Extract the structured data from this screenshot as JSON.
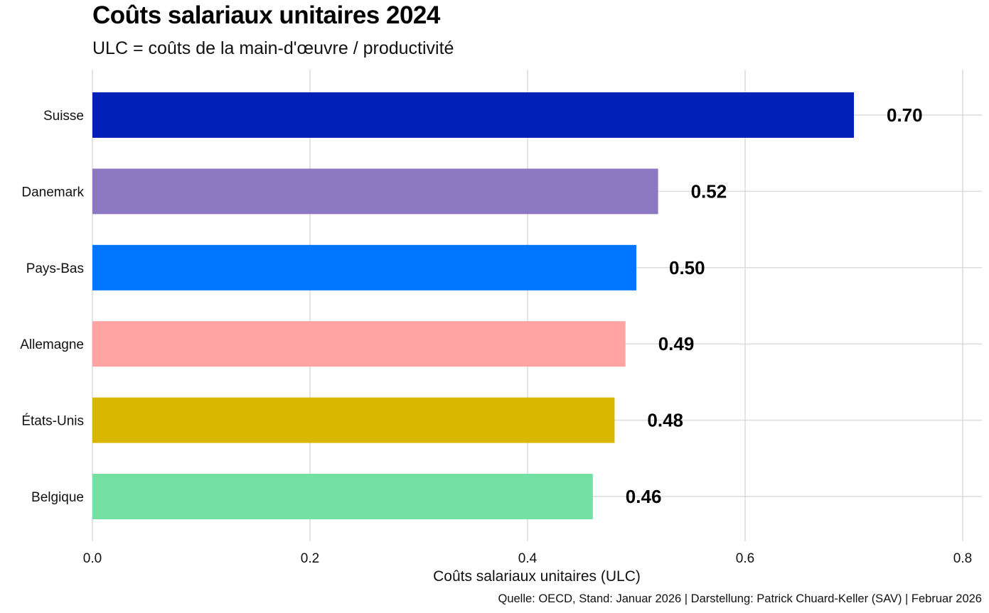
{
  "chart_data": {
    "type": "bar",
    "orientation": "horizontal",
    "title": "Coûts salariaux unitaires 2024",
    "subtitle": "ULC = coûts de la main-d'œuvre / productivité",
    "xlabel": "Coûts salariaux unitaires (ULC)",
    "ylabel": "",
    "caption": "Quelle: OECD, Stand: Januar 2026 | Darstellung: Patrick Chuard-Keller (SAV) | Februar 2026",
    "categories": [
      "Suisse",
      "Danemark",
      "Pays-Bas",
      "Allemagne",
      "États-Unis",
      "Belgique"
    ],
    "values": [
      0.7,
      0.52,
      0.5,
      0.49,
      0.48,
      0.46
    ],
    "data_labels": [
      "0.70",
      "0.52",
      "0.50",
      "0.49",
      "0.48",
      "0.46"
    ],
    "colors": [
      "#0020b8",
      "#8c78c2",
      "#0076ff",
      "#ffa3a3",
      "#d9b600",
      "#74e0a1"
    ],
    "xlim": [
      0,
      0.8
    ],
    "xticks": [
      0.0,
      0.2,
      0.4,
      0.6,
      0.8
    ],
    "xtick_labels": [
      "0.0",
      "0.2",
      "0.4",
      "0.6",
      "0.8"
    ],
    "grid": true,
    "legend": "none"
  }
}
